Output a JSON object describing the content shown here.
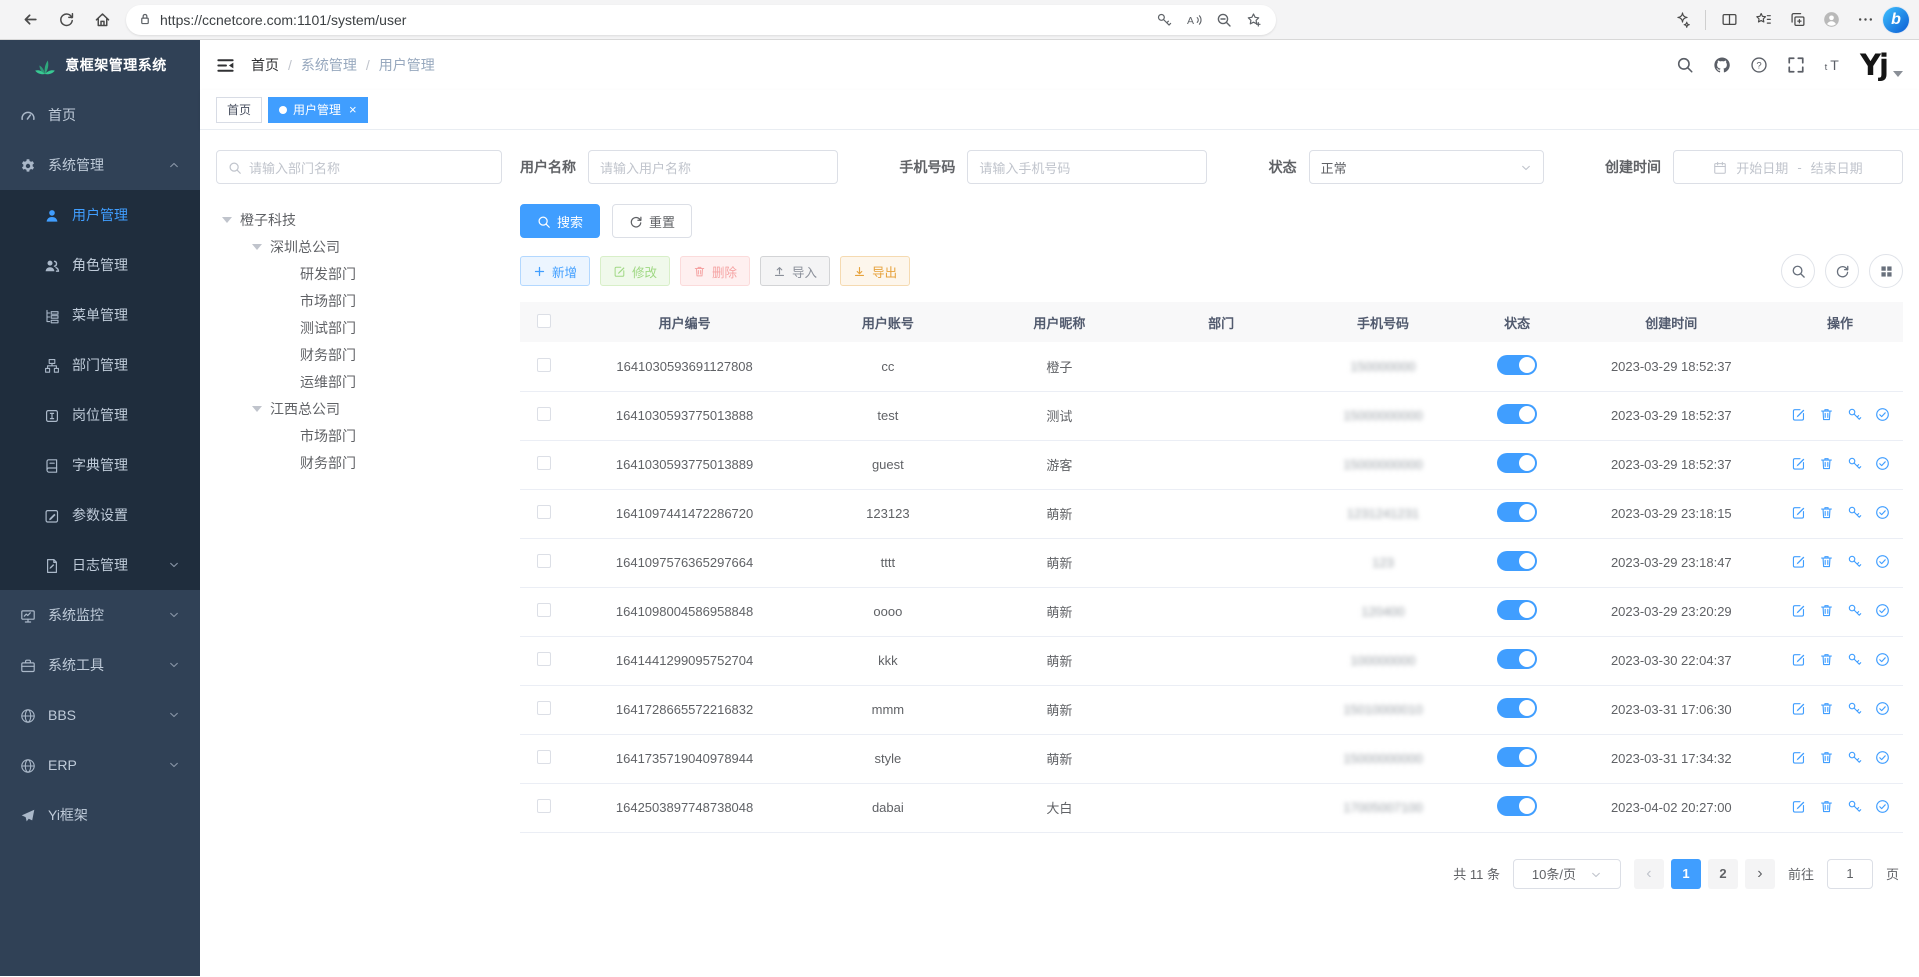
{
  "colors": {
    "accent": "#409eff",
    "sidebar_bg": "#304156",
    "submenu_bg": "#1f2d3d",
    "toggle_on": "#409eff",
    "active_tag": "#409eff"
  },
  "browser": {
    "url": "https://ccnetcore.com:1101/system/user",
    "left_icons": [
      "back",
      "refresh",
      "home"
    ],
    "pill_icons": [
      "key",
      "read-aloud",
      "zoom-out",
      "favorite-add"
    ],
    "right_icons": [
      "browser-essentials",
      "split-screen",
      "favorites-bar",
      "collections",
      "profile",
      "more"
    ],
    "bing_label": "b"
  },
  "app": {
    "title": "意框架管理系统"
  },
  "sidebar": {
    "items": [
      {
        "key": "home",
        "icon": "dashboard",
        "label": "首页"
      },
      {
        "key": "system-mgmt",
        "icon": "gear",
        "label": "系统管理",
        "arrow": "up",
        "children": [
          {
            "key": "user-mgmt",
            "icon": "user",
            "label": "用户管理",
            "active": true
          },
          {
            "key": "role-mgmt",
            "icon": "users",
            "label": "角色管理"
          },
          {
            "key": "menu-mgmt",
            "icon": "menutree",
            "label": "菜单管理"
          },
          {
            "key": "dept-mgmt",
            "icon": "org",
            "label": "部门管理"
          },
          {
            "key": "post-mgmt",
            "icon": "badge",
            "label": "岗位管理"
          },
          {
            "key": "dict-mgmt",
            "icon": "book",
            "label": "字典管理"
          },
          {
            "key": "param-settings",
            "icon": "editpen",
            "label": "参数设置"
          },
          {
            "key": "log-mgmt",
            "icon": "log",
            "label": "日志管理",
            "arrow": "down"
          }
        ]
      },
      {
        "key": "sys-monitor",
        "icon": "monitor",
        "label": "系统监控",
        "arrow": "down"
      },
      {
        "key": "sys-tools",
        "icon": "toolbox",
        "label": "系统工具",
        "arrow": "down"
      },
      {
        "key": "bbs",
        "icon": "globe",
        "label": "BBS",
        "arrow": "down"
      },
      {
        "key": "erp",
        "icon": "globe",
        "label": "ERP",
        "arrow": "down"
      },
      {
        "key": "yi-framework",
        "icon": "plane",
        "label": "Yi框架"
      }
    ]
  },
  "navbar": {
    "breadcrumb": [
      "首页",
      "系统管理",
      "用户管理"
    ],
    "separator": "/",
    "icons": [
      "search",
      "github",
      "question",
      "fullscreen",
      "font-size"
    ],
    "avatar_text": "Yj"
  },
  "tags": [
    {
      "key": "home",
      "label": "首页",
      "active": false,
      "closable": false,
      "dot": false
    },
    {
      "key": "user-mgmt",
      "label": "用户管理",
      "active": true,
      "closable": true,
      "dot": true
    }
  ],
  "filters": {
    "dept_placeholder": "请输入部门名称",
    "username": {
      "label": "用户名称",
      "placeholder": "请输入用户名称"
    },
    "phone": {
      "label": "手机号码",
      "placeholder": "请输入手机号码"
    },
    "status": {
      "label": "状态",
      "value": "正常"
    },
    "date": {
      "label": "创建时间",
      "start": "开始日期",
      "separator": "-",
      "end": "结束日期"
    },
    "search_label": "搜索",
    "reset_label": "重置"
  },
  "tree": {
    "nodes": [
      {
        "label": "橙子科技",
        "children": [
          {
            "label": "深圳总公司",
            "children": [
              {
                "label": "研发部门"
              },
              {
                "label": "市场部门"
              },
              {
                "label": "测试部门"
              },
              {
                "label": "财务部门"
              },
              {
                "label": "运维部门"
              }
            ]
          },
          {
            "label": "江西总公司",
            "children": [
              {
                "label": "市场部门"
              },
              {
                "label": "财务部门"
              }
            ]
          }
        ]
      }
    ]
  },
  "toolbar": {
    "buttons": [
      {
        "key": "add",
        "label": "新增",
        "icon": "plus",
        "type": "primary",
        "disabled": false
      },
      {
        "key": "edit",
        "label": "修改",
        "icon": "edit",
        "type": "success",
        "disabled": true
      },
      {
        "key": "delete",
        "label": "删除",
        "icon": "trash",
        "type": "danger",
        "disabled": true
      },
      {
        "key": "import",
        "label": "导入",
        "icon": "upload",
        "type": "info",
        "disabled": false
      },
      {
        "key": "export",
        "label": "导出",
        "icon": "download",
        "type": "warning",
        "disabled": false
      }
    ],
    "right_icons": [
      "search",
      "refresh",
      "grid"
    ]
  },
  "table": {
    "columns": [
      "用户编号",
      "用户账号",
      "用户昵称",
      "部门",
      "手机号码",
      "状态",
      "创建时间",
      "操作"
    ],
    "rows": [
      {
        "id": "1641030593691127808",
        "account": "cc",
        "nickname": "橙子",
        "dept": "",
        "phone": "150000000",
        "masked": true,
        "status": true,
        "created": "2023-03-29 18:52:37",
        "actions": false
      },
      {
        "id": "1641030593775013888",
        "account": "test",
        "nickname": "测试",
        "dept": "",
        "phone": "15000000000",
        "masked": true,
        "status": true,
        "created": "2023-03-29 18:52:37",
        "actions": true
      },
      {
        "id": "1641030593775013889",
        "account": "guest",
        "nickname": "游客",
        "dept": "",
        "phone": "15000000000",
        "masked": true,
        "status": true,
        "created": "2023-03-29 18:52:37",
        "actions": true
      },
      {
        "id": "1641097441472286720",
        "account": "123123",
        "nickname": "萌新",
        "dept": "",
        "phone": "1231241231",
        "masked": true,
        "status": true,
        "created": "2023-03-29 23:18:15",
        "actions": true
      },
      {
        "id": "1641097576365297664",
        "account": "tttt",
        "nickname": "萌新",
        "dept": "",
        "phone": "123",
        "masked": true,
        "status": true,
        "created": "2023-03-29 23:18:47",
        "actions": true
      },
      {
        "id": "1641098004586958848",
        "account": "oooo",
        "nickname": "萌新",
        "dept": "",
        "phone": "120400",
        "masked": true,
        "status": true,
        "created": "2023-03-29 23:20:29",
        "actions": true
      },
      {
        "id": "1641441299095752704",
        "account": "kkk",
        "nickname": "萌新",
        "dept": "",
        "phone": "100000000",
        "masked": true,
        "status": true,
        "created": "2023-03-30 22:04:37",
        "actions": true
      },
      {
        "id": "1641728665572216832",
        "account": "mmm",
        "nickname": "萌新",
        "dept": "",
        "phone": "15010000010",
        "masked": true,
        "status": true,
        "created": "2023-03-31 17:06:30",
        "actions": true
      },
      {
        "id": "1641735719040978944",
        "account": "style",
        "nickname": "萌新",
        "dept": "",
        "phone": "15000000000",
        "masked": true,
        "status": true,
        "created": "2023-03-31 17:34:32",
        "actions": true
      },
      {
        "id": "1642503897748738048",
        "account": "dabai",
        "nickname": "大白",
        "dept": "",
        "phone": "17005007100",
        "masked": true,
        "status": true,
        "created": "2023-04-02 20:27:00",
        "actions": true
      }
    ]
  },
  "pagination": {
    "total": "共 11 条",
    "page_size": "10条/页",
    "pages": [
      "1",
      "2"
    ],
    "current": "1",
    "prev": "‹",
    "next": "›",
    "goto_label": "前往",
    "goto_value": "1",
    "unit_label": "页"
  }
}
